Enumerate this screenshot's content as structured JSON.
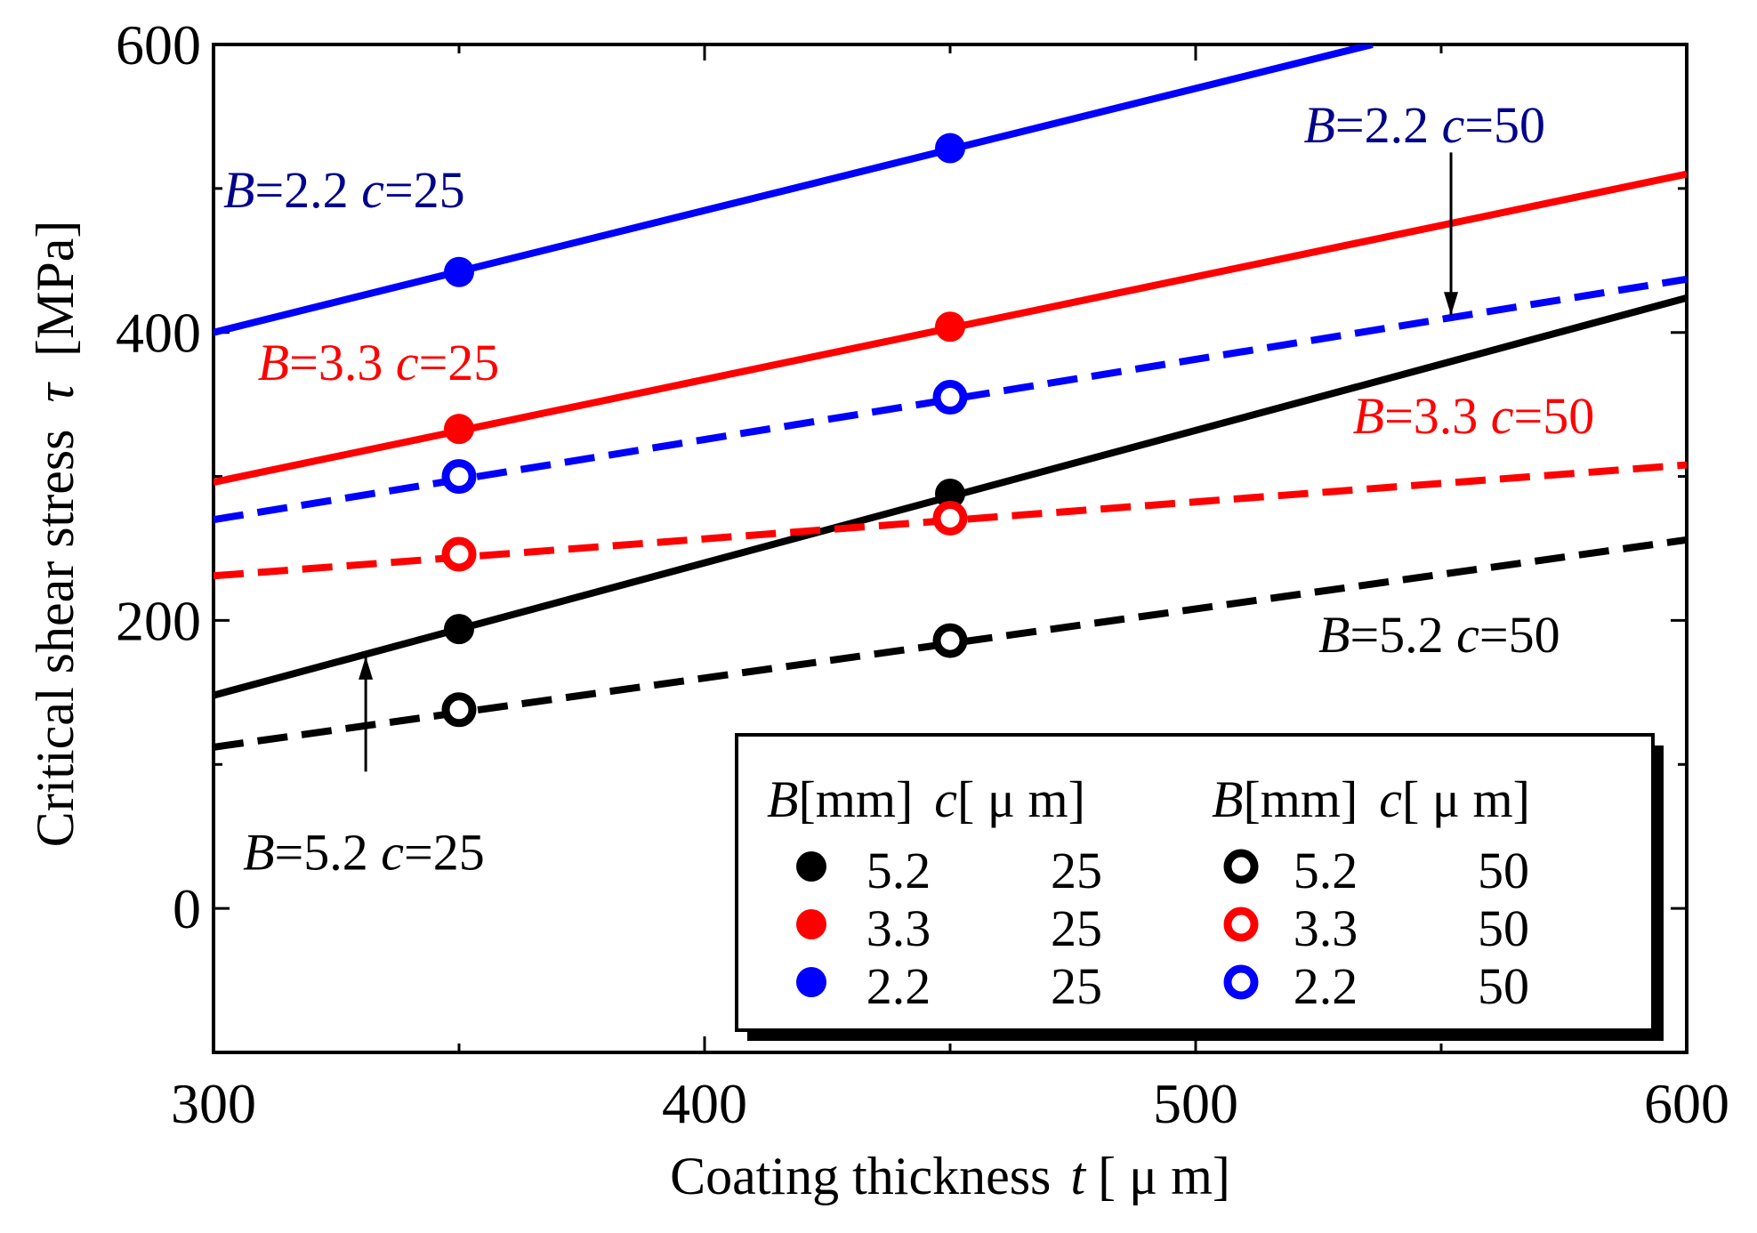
{
  "chart_data": {
    "type": "line",
    "xlabel": "Coating thickness",
    "xlabel_symbol": "t",
    "xlabel_unit": "[ μ m]",
    "ylabel": "Critical shear stress",
    "ylabel_symbol": "τ",
    "ylabel_unit": "[MPa]",
    "xlim": [
      300,
      600
    ],
    "ylim": [
      -100,
      600
    ],
    "xticks": [
      300,
      400,
      500,
      600
    ],
    "yticks": [
      0,
      200,
      400,
      600
    ],
    "xtick_labels": [
      "300",
      "400",
      "500",
      "600"
    ],
    "ytick_labels": [
      "0",
      "200",
      "400",
      "600"
    ],
    "series": [
      {
        "id": "b22c25",
        "name": "B=2.2 c=25",
        "B": "2.2",
        "c": "25",
        "color": "#0000ff",
        "dash": false,
        "marker": "filled",
        "x": [
          300,
          536
        ],
        "y": [
          400,
          600
        ],
        "marker_x": [
          350,
          450
        ],
        "marker_y": [
          442,
          528
        ]
      },
      {
        "id": "b33c25",
        "name": "B=3.3 c=25",
        "B": "3.3",
        "c": "25",
        "color": "#ff0000",
        "dash": false,
        "marker": "filled",
        "x": [
          300,
          600
        ],
        "y": [
          296,
          510
        ],
        "marker_x": [
          350,
          450
        ],
        "marker_y": [
          333,
          404
        ]
      },
      {
        "id": "b52c25",
        "name": "B=5.2 c=25",
        "B": "5.2",
        "c": "25",
        "color": "#000000",
        "dash": false,
        "marker": "filled",
        "x": [
          300,
          600
        ],
        "y": [
          148,
          424
        ],
        "marker_x": [
          350,
          450
        ],
        "marker_y": [
          194,
          288
        ]
      },
      {
        "id": "b22c50",
        "name": "B=2.2 c=50",
        "B": "2.2",
        "c": "50",
        "color": "#0000ff",
        "dash": true,
        "marker": "open",
        "x": [
          300,
          600
        ],
        "y": [
          270,
          437
        ],
        "marker_x": [
          350,
          450
        ],
        "marker_y": [
          300,
          355
        ]
      },
      {
        "id": "b33c50",
        "name": "B=3.3 c=50",
        "B": "3.3",
        "c": "50",
        "color": "#ff0000",
        "dash": true,
        "marker": "open",
        "x": [
          300,
          600
        ],
        "y": [
          231,
          308
        ],
        "marker_x": [
          350,
          450
        ],
        "marker_y": [
          246,
          271
        ]
      },
      {
        "id": "b52c50",
        "name": "B=5.2 c=50",
        "B": "5.2",
        "c": "50",
        "color": "#000000",
        "dash": true,
        "marker": "open",
        "x": [
          300,
          600
        ],
        "y": [
          112,
          256
        ],
        "marker_x": [
          350,
          450
        ],
        "marker_y": [
          138,
          186
        ]
      }
    ],
    "annotations": [
      {
        "series": "b22c25",
        "b_text": "B",
        "rest1": "=2.2 ",
        "c_text": "c",
        "rest2": "=25",
        "color": "#00008b",
        "x": 302,
        "y": 487,
        "arrow": false
      },
      {
        "series": "b22c50",
        "b_text": "B",
        "rest1": "=2.2 ",
        "c_text": "c",
        "rest2": "=50",
        "color": "#00008b",
        "x": 522,
        "y": 532,
        "arrow": true,
        "arrow_from": [
          552,
          525
        ],
        "arrow_to": [
          552,
          412
        ]
      },
      {
        "series": "b33c25",
        "b_text": "B",
        "rest1": "=3.3 ",
        "c_text": "c",
        "rest2": "=25",
        "color": "#ff0000",
        "x": 309,
        "y": 367,
        "arrow": false
      },
      {
        "series": "b33c50",
        "b_text": "B",
        "rest1": "=3.3 ",
        "c_text": "c",
        "rest2": "=50",
        "color": "#ff0000",
        "x": 532,
        "y": 330,
        "arrow": false
      },
      {
        "series": "b52c50",
        "b_text": "B",
        "rest1": "=5.2 ",
        "c_text": "c",
        "rest2": "=50",
        "color": "#000000",
        "x": 525,
        "y": 178,
        "arrow": false
      },
      {
        "series": "b52c25",
        "b_text": "B",
        "rest1": "=5.2 ",
        "c_text": "c",
        "rest2": "=25",
        "color": "#000000",
        "x": 306,
        "y": 27,
        "arrow": true,
        "arrow_from": [
          331,
          95
        ],
        "arrow_to": [
          331,
          175
        ]
      }
    ],
    "legend": {
      "placement": "bottom-right",
      "header_B": "B",
      "header_B_unit": "[mm]",
      "header_c": "c",
      "header_c_unit": "[ μ m]",
      "rows": [
        {
          "series": "b52c25",
          "B": "5.2",
          "c": "25"
        },
        {
          "series": "b33c25",
          "B": "3.3",
          "c": "25"
        },
        {
          "series": "b22c25",
          "B": "2.2",
          "c": "25"
        },
        {
          "series": "b52c50",
          "B": "5.2",
          "c": "50"
        },
        {
          "series": "b33c50",
          "B": "3.3",
          "c": "50"
        },
        {
          "series": "b22c50",
          "B": "2.2",
          "c": "50"
        }
      ]
    }
  }
}
